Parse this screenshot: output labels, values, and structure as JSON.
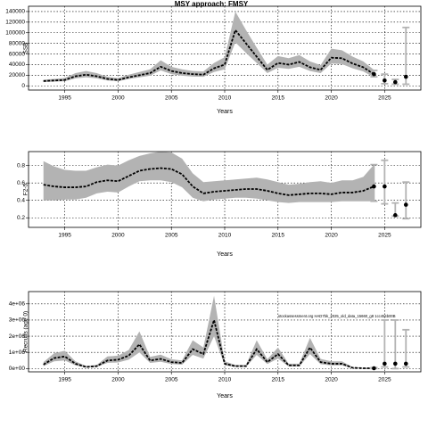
{
  "chart_data": [
    {
      "type": "line",
      "title": "MSY approach: FMSY",
      "ylabel": "SSB",
      "xlabel": "Years",
      "x": [
        1993,
        1994,
        1995,
        1996,
        1997,
        1998,
        1999,
        2000,
        2001,
        2002,
        2003,
        2004,
        2005,
        2006,
        2007,
        2008,
        2009,
        2010,
        2011,
        2012,
        2013,
        2014,
        2015,
        2016,
        2017,
        2018,
        2019,
        2020,
        2021,
        2022,
        2023,
        2024
      ],
      "values": [
        9000,
        10000,
        11000,
        18000,
        21000,
        18000,
        13000,
        11000,
        16000,
        20000,
        24000,
        36000,
        28000,
        24000,
        22000,
        21000,
        33000,
        40000,
        105000,
        80000,
        55000,
        30000,
        43000,
        40000,
        45000,
        35000,
        30000,
        53000,
        52000,
        42000,
        35000,
        22000
      ],
      "lower": [
        7000,
        8000,
        8500,
        14000,
        16000,
        14000,
        10000,
        8500,
        13000,
        16000,
        19000,
        29000,
        22000,
        19000,
        17500,
        17000,
        26000,
        31000,
        82000,
        62000,
        43000,
        24000,
        34000,
        32000,
        36000,
        28000,
        24000,
        42000,
        41000,
        33000,
        27000,
        16000
      ],
      "upper": [
        11500,
        13000,
        15000,
        24000,
        28000,
        24000,
        17000,
        14500,
        21000,
        26000,
        31000,
        48000,
        36000,
        31000,
        28000,
        27000,
        43000,
        54000,
        140000,
        105000,
        72000,
        40000,
        56000,
        52000,
        58000,
        46000,
        39000,
        70000,
        67000,
        55000,
        46000,
        30000
      ],
      "forecast": {
        "x": [
          2024,
          2025,
          2026,
          2027
        ],
        "values": [
          22000,
          10000,
          7000,
          17000
        ],
        "lower": [
          17000,
          4000,
          3000,
          3000
        ],
        "upper": [
          29000,
          22000,
          12000,
          110000
        ]
      },
      "xlim": [
        1991.6,
        2028.4
      ],
      "ylim": [
        -8000,
        150000
      ],
      "xticks": [
        1995,
        2000,
        2005,
        2010,
        2015,
        2020,
        2025
      ],
      "yticks": [
        0,
        20000,
        40000,
        60000,
        80000,
        100000,
        120000,
        140000
      ],
      "grid": true,
      "color": "#000000",
      "band_color": "#b3b3b3",
      "bar_color": "#b3b3b3"
    },
    {
      "type": "line",
      "ylabel": "F2-5",
      "xlabel": "Years",
      "x": [
        1993,
        1994,
        1995,
        1996,
        1997,
        1998,
        1999,
        2000,
        2001,
        2002,
        2003,
        2004,
        2005,
        2006,
        2007,
        2008,
        2009,
        2010,
        2011,
        2012,
        2013,
        2014,
        2015,
        2016,
        2017,
        2018,
        2019,
        2020,
        2021,
        2022,
        2023,
        2024
      ],
      "values": [
        0.58,
        0.56,
        0.55,
        0.55,
        0.56,
        0.61,
        0.63,
        0.62,
        0.68,
        0.74,
        0.76,
        0.77,
        0.76,
        0.7,
        0.56,
        0.48,
        0.5,
        0.51,
        0.52,
        0.53,
        0.53,
        0.51,
        0.48,
        0.46,
        0.47,
        0.48,
        0.48,
        0.47,
        0.49,
        0.49,
        0.51,
        0.56
      ],
      "lower": [
        0.4,
        0.4,
        0.41,
        0.41,
        0.43,
        0.48,
        0.5,
        0.49,
        0.56,
        0.62,
        0.63,
        0.63,
        0.61,
        0.55,
        0.43,
        0.39,
        0.41,
        0.42,
        0.43,
        0.43,
        0.42,
        0.4,
        0.38,
        0.37,
        0.38,
        0.38,
        0.38,
        0.38,
        0.39,
        0.39,
        0.39,
        0.39
      ],
      "upper": [
        0.85,
        0.79,
        0.75,
        0.74,
        0.74,
        0.78,
        0.81,
        0.8,
        0.86,
        0.91,
        0.94,
        0.96,
        0.95,
        0.88,
        0.71,
        0.61,
        0.62,
        0.63,
        0.64,
        0.65,
        0.66,
        0.64,
        0.61,
        0.58,
        0.59,
        0.61,
        0.62,
        0.6,
        0.63,
        0.63,
        0.67,
        0.81
      ],
      "forecast": {
        "x": [
          2024,
          2025,
          2026,
          2027
        ],
        "values": [
          0.56,
          0.56,
          0.23,
          0.35
        ],
        "lower": [
          0.39,
          0.36,
          0.22,
          0.19
        ],
        "upper": [
          0.81,
          0.86,
          0.37,
          0.61
        ]
      },
      "xlim": [
        1991.6,
        2028.4
      ],
      "ylim": [
        0.09,
        0.96
      ],
      "xticks": [
        1995,
        2000,
        2005,
        2010,
        2015,
        2020,
        2025
      ],
      "yticks": [
        0.2,
        0.4,
        0.6,
        0.8
      ],
      "grid": true,
      "color": "#000000",
      "band_color": "#b3b3b3",
      "bar_color": "#b3b3b3"
    },
    {
      "type": "line",
      "ylabel": "Recruits (age 0)",
      "xlabel": "Years",
      "annotation": "stockassessment.org HAD7bk_2025_old_data_15660_g8 1cc454b00B",
      "x": [
        1993,
        1994,
        1995,
        1996,
        1997,
        1998,
        1999,
        2000,
        2001,
        2002,
        2003,
        2004,
        2005,
        2006,
        2007,
        2008,
        2009,
        2010,
        2011,
        2012,
        2013,
        2014,
        2015,
        2016,
        2017,
        2018,
        2019,
        2020,
        2021,
        2022,
        2023,
        2024
      ],
      "values": [
        250000,
        650000,
        750000,
        300000,
        100000,
        150000,
        500000,
        550000,
        800000,
        1500000,
        500000,
        600000,
        400000,
        350000,
        1200000,
        900000,
        3000000,
        300000,
        150000,
        150000,
        1200000,
        400000,
        900000,
        200000,
        200000,
        1300000,
        400000,
        300000,
        300000,
        50000,
        20000,
        20000
      ],
      "lower": [
        150000,
        450000,
        500000,
        200000,
        60000,
        100000,
        350000,
        380000,
        550000,
        1000000,
        350000,
        420000,
        280000,
        240000,
        850000,
        620000,
        2000000,
        200000,
        100000,
        100000,
        850000,
        280000,
        620000,
        130000,
        130000,
        900000,
        270000,
        200000,
        200000,
        30000,
        10000,
        5000
      ],
      "upper": [
        400000,
        950000,
        1100000,
        450000,
        160000,
        230000,
        750000,
        800000,
        1150000,
        2300000,
        720000,
        860000,
        580000,
        500000,
        1750000,
        1300000,
        4500000,
        450000,
        230000,
        230000,
        1750000,
        580000,
        1300000,
        300000,
        300000,
        1900000,
        600000,
        450000,
        450000,
        90000,
        40000,
        60000
      ],
      "forecast": {
        "x": [
          2024,
          2025,
          2026,
          2027
        ],
        "values": [
          20000,
          300000,
          300000,
          300000
        ],
        "lower": [
          5000,
          100000,
          0,
          100000
        ],
        "upper": [
          60000,
          3000000,
          3000000,
          2400000
        ]
      },
      "xlim": [
        1991.6,
        2028.4
      ],
      "ylim": [
        -200000,
        4760000
      ],
      "xticks": [
        1995,
        2000,
        2005,
        2010,
        2015,
        2020,
        2025
      ],
      "yticks": [
        {
          "value": 0,
          "label": "0e+00"
        },
        {
          "value": 1000000,
          "label": "1e+06"
        },
        {
          "value": 2000000,
          "label": "2e+06"
        },
        {
          "value": 3000000,
          "label": "3e+06"
        },
        {
          "value": 4000000,
          "label": "4e+06"
        }
      ],
      "grid": true,
      "color": "#000000",
      "band_color": "#b3b3b3",
      "bar_color": "#b3b3b3"
    }
  ]
}
